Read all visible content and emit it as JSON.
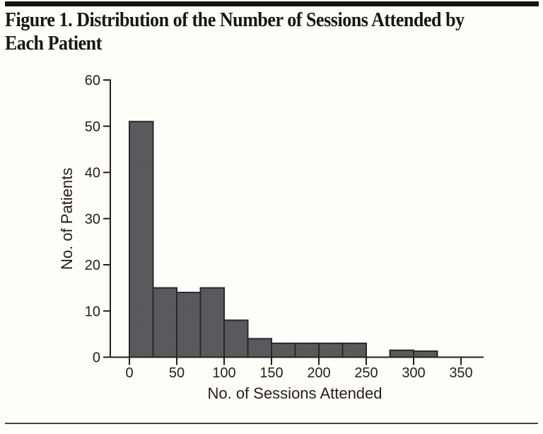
{
  "page": {
    "title_line1": "Figure 1. Distribution of the Number of Sessions Attended by",
    "title_line2": "Each Patient",
    "top_rule_color": "#121212",
    "bottom_rule_color": "#454545",
    "background": "#fdfdf9"
  },
  "chart_data": {
    "type": "bar",
    "subtype": "histogram",
    "title": "Figure 1. Distribution of the Number of Sessions Attended by Each Patient",
    "xlabel": "No. of Sessions Attended",
    "ylabel": "No. of Patients",
    "xlim": [
      0,
      375
    ],
    "ylim": [
      0,
      60
    ],
    "x_ticks": [
      0,
      50,
      100,
      150,
      200,
      250,
      300,
      350
    ],
    "y_ticks": [
      0,
      10,
      20,
      30,
      40,
      50,
      60
    ],
    "bin_width": 25,
    "bars": [
      {
        "range": [
          0,
          25
        ],
        "count": 51
      },
      {
        "range": [
          25,
          50
        ],
        "count": 15
      },
      {
        "range": [
          50,
          75
        ],
        "count": 14
      },
      {
        "range": [
          75,
          100
        ],
        "count": 15
      },
      {
        "range": [
          100,
          125
        ],
        "count": 8
      },
      {
        "range": [
          125,
          150
        ],
        "count": 4
      },
      {
        "range": [
          150,
          175
        ],
        "count": 3
      },
      {
        "range": [
          175,
          200
        ],
        "count": 3
      },
      {
        "range": [
          200,
          225
        ],
        "count": 3
      },
      {
        "range": [
          225,
          250
        ],
        "count": 3
      },
      {
        "range": [
          250,
          275
        ],
        "count": 0
      },
      {
        "range": [
          275,
          300
        ],
        "count": 1.5
      },
      {
        "range": [
          300,
          325
        ],
        "count": 1.3
      }
    ],
    "grid": false,
    "legend": false,
    "colors": {
      "bar_fill": "#57575a",
      "bar_dot": "#646467",
      "bar_stroke": "#29292b",
      "axis": "#231f20",
      "text": "#231f20"
    }
  }
}
